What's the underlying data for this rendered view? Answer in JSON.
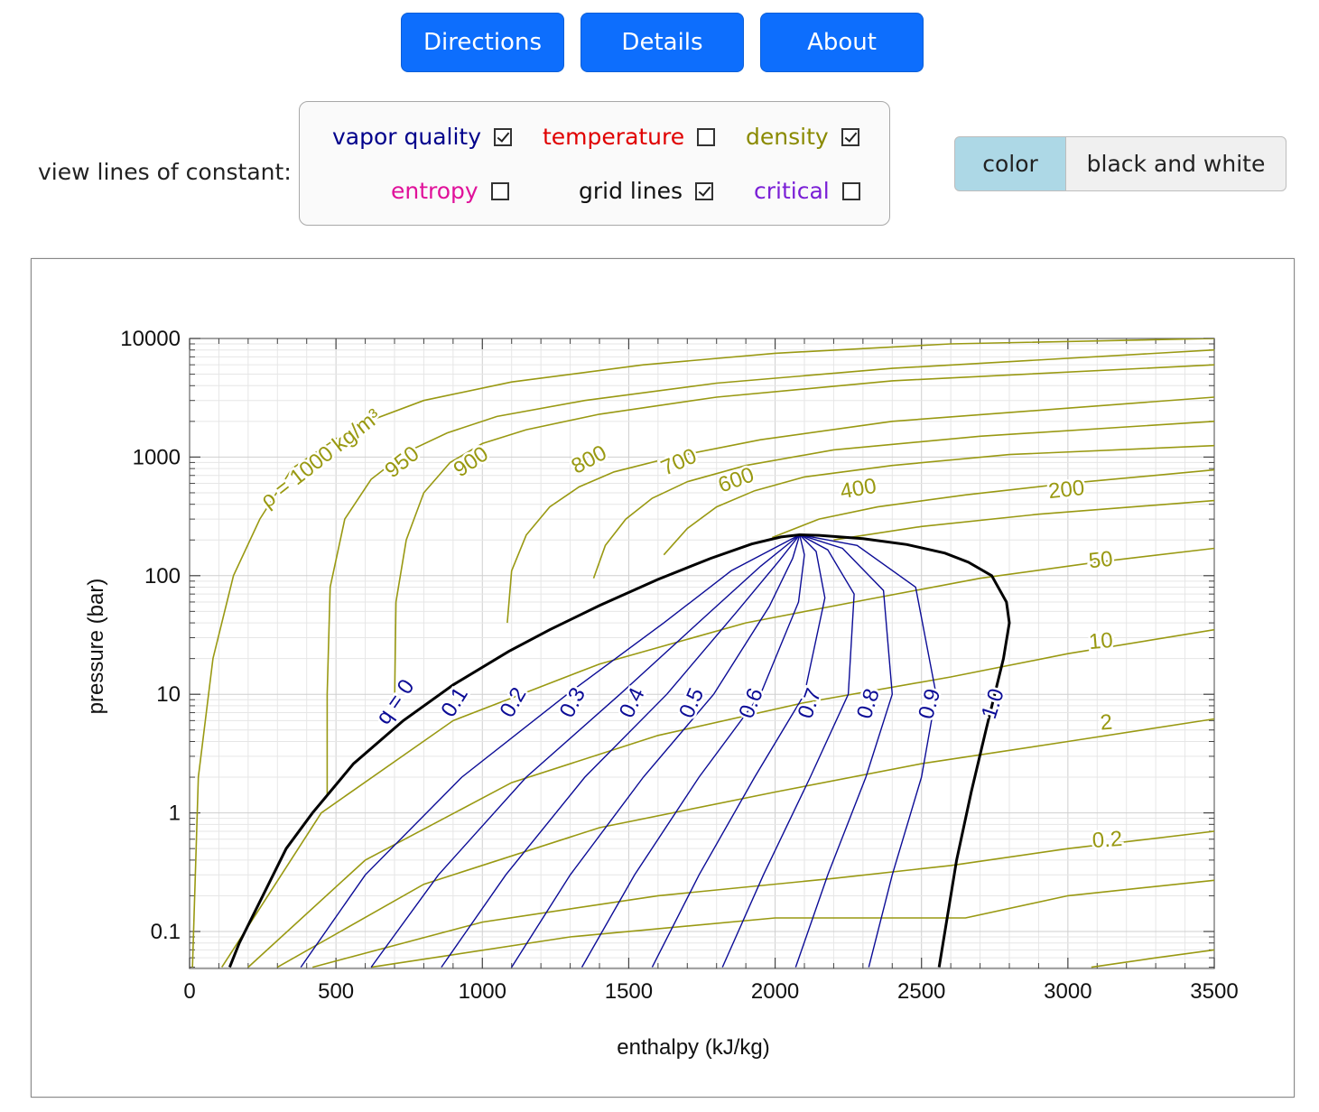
{
  "buttons": {
    "directions": "Directions",
    "details": "Details",
    "about": "About"
  },
  "controls": {
    "view_label": "view lines of constant:",
    "options": [
      {
        "label": "vapor quality",
        "checked": true,
        "color": "#00008b"
      },
      {
        "label": "temperature",
        "checked": false,
        "color": "#e00000"
      },
      {
        "label": "density",
        "checked": true,
        "color": "#8a8a00"
      },
      {
        "label": "entropy",
        "checked": false,
        "color": "#e0119a"
      },
      {
        "label": "grid lines",
        "checked": true,
        "color": "#111111"
      },
      {
        "label": "critical",
        "checked": false,
        "color": "#7a1fd6"
      }
    ],
    "mode": {
      "color": "color",
      "bw": "black and white",
      "selected": "color"
    }
  },
  "chart_data": {
    "type": "line",
    "xlabel": "enthalpy (kJ/kg)",
    "ylabel": "pressure (bar)",
    "xlim": [
      0,
      3500
    ],
    "ylim": [
      0.05,
      10000
    ],
    "yscale": "log",
    "grid": true,
    "x_ticks": [
      "0",
      "500",
      "1000",
      "1500",
      "2000",
      "2500",
      "3000",
      "3500"
    ],
    "y_ticks": [
      "0.1",
      "1",
      "10",
      "100",
      "1000",
      "10000"
    ],
    "colors": {
      "saturation": "#000000",
      "quality": "#0c0c96",
      "density": "#999912",
      "grid": "#d9d9d9"
    },
    "saturation_dome": {
      "x": [
        137,
        170,
        250,
        330,
        420,
        560,
        730,
        900,
        1090,
        1230,
        1400,
        1600,
        1780,
        1920,
        2020,
        2084,
        2150,
        2300,
        2450,
        2580,
        2660,
        2740,
        2790,
        2800,
        2780,
        2720,
        2670,
        2620,
        2560
      ],
      "y": [
        0.05,
        0.08,
        0.2,
        0.5,
        1,
        2.6,
        6,
        12,
        23,
        35,
        56,
        93,
        140,
        185,
        212,
        221,
        219,
        205,
        183,
        155,
        130,
        100,
        60,
        40,
        20,
        5,
        1.5,
        0.4,
        0.05
      ]
    },
    "quality_lines": [
      {
        "label": "q = 0",
        "x": [
          137,
          250,
          420,
          730,
          1090,
          1400,
          1780,
          2084
        ],
        "y": [
          0.05,
          0.2,
          1,
          6,
          23,
          56,
          140,
          221
        ]
      },
      {
        "label": "0.1",
        "x": [
          380,
          600,
          930,
          1290,
          1620,
          1850,
          2084
        ],
        "y": [
          0.05,
          0.3,
          2,
          10,
          40,
          110,
          221
        ]
      },
      {
        "label": "0.2",
        "x": [
          620,
          850,
          1150,
          1470,
          1760,
          1950,
          2084
        ],
        "y": [
          0.05,
          0.3,
          2,
          10,
          45,
          120,
          221
        ]
      },
      {
        "label": "0.3",
        "x": [
          860,
          1080,
          1350,
          1630,
          1870,
          2010,
          2084
        ],
        "y": [
          0.05,
          0.3,
          2,
          10,
          50,
          130,
          221
        ]
      },
      {
        "label": "0.4",
        "x": [
          1100,
          1300,
          1550,
          1790,
          1980,
          2060,
          2084
        ],
        "y": [
          0.05,
          0.3,
          2,
          10,
          55,
          140,
          221
        ]
      },
      {
        "label": "0.5",
        "x": [
          1340,
          1520,
          1740,
          1950,
          2080,
          2100,
          2084
        ],
        "y": [
          0.05,
          0.3,
          2,
          10,
          60,
          150,
          221
        ]
      },
      {
        "label": "0.6",
        "x": [
          1580,
          1740,
          1930,
          2100,
          2170,
          2140,
          2084
        ],
        "y": [
          0.05,
          0.3,
          2,
          10,
          65,
          160,
          221
        ]
      },
      {
        "label": "0.7",
        "x": [
          1820,
          1960,
          2120,
          2250,
          2270,
          2180,
          2084
        ],
        "y": [
          0.05,
          0.3,
          2,
          10,
          70,
          165,
          221
        ]
      },
      {
        "label": "0.8",
        "x": [
          2070,
          2180,
          2310,
          2400,
          2370,
          2230,
          2084
        ],
        "y": [
          0.05,
          0.3,
          2,
          10,
          75,
          170,
          221
        ]
      },
      {
        "label": "0.9",
        "x": [
          2320,
          2400,
          2500,
          2550,
          2480,
          2280,
          2084
        ],
        "y": [
          0.05,
          0.3,
          2,
          10,
          80,
          180,
          221
        ]
      }
    ],
    "quality_label_10": "1.0",
    "density_lines": [
      {
        "label": "ρ = 1000 kg/m³",
        "x": [
          10,
          30,
          80,
          150,
          240,
          350,
          560,
          800,
          1100,
          1550,
          2000,
          2600,
          3500
        ],
        "y": [
          0.05,
          2,
          20,
          100,
          300,
          800,
          1800,
          3000,
          4300,
          6000,
          7500,
          9000,
          10000
        ]
      },
      {
        "label": "950",
        "x": [
          470,
          470,
          480,
          530,
          620,
          740,
          880,
          1050,
          1350,
          1800,
          2400,
          3500
        ],
        "y": [
          1.4,
          10,
          80,
          300,
          650,
          1100,
          1600,
          2200,
          3000,
          4200,
          5600,
          8000
        ]
      },
      {
        "label": "900",
        "x": [
          700,
          705,
          740,
          800,
          890,
          1000,
          1150,
          1400,
          1800,
          2400,
          3500
        ],
        "y": [
          8,
          60,
          200,
          500,
          900,
          1300,
          1700,
          2300,
          3200,
          4400,
          6000
        ]
      },
      {
        "label": "800",
        "x": [
          1085,
          1100,
          1150,
          1230,
          1330,
          1450,
          1650,
          1950,
          2400,
          3500
        ],
        "y": [
          40,
          110,
          220,
          380,
          560,
          750,
          1000,
          1400,
          2000,
          3200
        ]
      },
      {
        "label": "700",
        "x": [
          1380,
          1420,
          1490,
          1580,
          1700,
          1900,
          2200,
          2700,
          3500
        ],
        "y": [
          95,
          180,
          300,
          450,
          620,
          850,
          1150,
          1500,
          2000
        ]
      },
      {
        "label": "600",
        "x": [
          1620,
          1700,
          1800,
          1930,
          2100,
          2400,
          2800,
          3500
        ],
        "y": [
          150,
          250,
          380,
          520,
          680,
          850,
          1050,
          1250
        ]
      },
      {
        "label": "400",
        "x": [
          1990,
          2150,
          2350,
          2650,
          3000,
          3500
        ],
        "y": [
          210,
          300,
          380,
          480,
          600,
          780
        ]
      },
      {
        "label": "200",
        "x": [
          2200,
          2500,
          2900,
          3500
        ],
        "y": [
          200,
          260,
          330,
          430
        ]
      },
      {
        "label": "50",
        "x": [
          110,
          450,
          900,
          1400,
          1900,
          2300,
          2700,
          3100,
          3500
        ],
        "y": [
          0.05,
          1,
          6,
          18,
          40,
          62,
          95,
          130,
          170
        ]
      },
      {
        "label": "10",
        "x": [
          200,
          600,
          1100,
          1600,
          2100,
          2600,
          3000,
          3500
        ],
        "y": [
          0.05,
          0.4,
          1.8,
          4.5,
          8.5,
          14,
          22,
          35
        ]
      },
      {
        "label": "2",
        "x": [
          300,
          800,
          1400,
          2000,
          2500,
          3000,
          3500
        ],
        "y": [
          0.05,
          0.25,
          0.75,
          1.5,
          2.6,
          4.0,
          6.2
        ]
      },
      {
        "label": "0.2",
        "x": [
          420,
          1000,
          1600,
          2200,
          2600,
          3000,
          3500
        ],
        "y": [
          0.05,
          0.12,
          0.2,
          0.28,
          0.36,
          0.5,
          0.7
        ]
      },
      {
        "label": "",
        "x": [
          620,
          1300,
          2000,
          2580,
          2650,
          3000,
          3500
        ],
        "y": [
          0.05,
          0.09,
          0.13,
          0.13,
          0.13,
          0.2,
          0.27
        ]
      },
      {
        "label": "",
        "x": [
          3080,
          3300,
          3500
        ],
        "y": [
          0.05,
          0.06,
          0.07
        ]
      }
    ]
  }
}
